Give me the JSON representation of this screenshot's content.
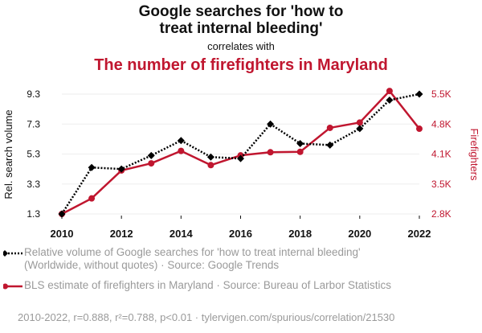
{
  "header": {
    "title_line1": "Google searches for 'how to",
    "title_line2": "treat internal bleeding'",
    "connector": "correlates with",
    "title2": "The number of firefighters in Maryland"
  },
  "colors": {
    "series1": "#000000",
    "series2": "#c0162f",
    "grid": "#eeeeee"
  },
  "chart_data": {
    "type": "line",
    "title": "Google searches for 'how to treat internal bleeding' correlates with The number of firefighters in Maryland",
    "x": [
      2010,
      2011,
      2012,
      2013,
      2014,
      2015,
      2016,
      2017,
      2018,
      2019,
      2020,
      2021,
      2022
    ],
    "xticks": [
      "2010",
      "2012",
      "2014",
      "2016",
      "2018",
      "2020",
      "2022"
    ],
    "xlim": [
      2010,
      2022
    ],
    "ylabel_left": "Rel. search volume",
    "ylabel_right": "Firefighters",
    "yticks_left": [
      "1.3",
      "3.3",
      "5.3",
      "7.3",
      "9.3"
    ],
    "ylim_left": [
      1.3,
      9.3
    ],
    "yticks_right": [
      "2.8K",
      "3.5K",
      "4.1K",
      "4.8K",
      "5.5K"
    ],
    "ylim_right": [
      2800,
      5500
    ],
    "grid": true,
    "series": [
      {
        "name": "Relative volume of Google searches for 'how to treat internal bleeding' (Worldwide, without quotes) · Source: Google Trends",
        "axis": "left",
        "style": "dotted",
        "marker": "diamond",
        "values": [
          1.3,
          4.4,
          4.3,
          5.2,
          6.2,
          5.1,
          5.0,
          7.3,
          6.0,
          5.9,
          7.0,
          8.9,
          9.3
        ]
      },
      {
        "name": "BLS estimate of firefighters in Maryland · Source: Bureau of Larbor Statistics",
        "axis": "right",
        "style": "solid",
        "marker": "circle",
        "values": [
          2800,
          3150,
          3780,
          3940,
          4220,
          3900,
          4120,
          4190,
          4200,
          4740,
          4860,
          5570,
          4720
        ]
      }
    ]
  },
  "legend": {
    "item1": "Relative volume of Google searches for 'how to treat internal bleeding' (Worldwide, without quotes) · Source: Google Trends",
    "item2": "BLS estimate of firefighters in Maryland · Source: Bureau of Larbor Statistics"
  },
  "footer": "2010-2022, r=0.888, r²=0.788, p<0.01 · tylervigen.com/spurious/correlation/21530"
}
